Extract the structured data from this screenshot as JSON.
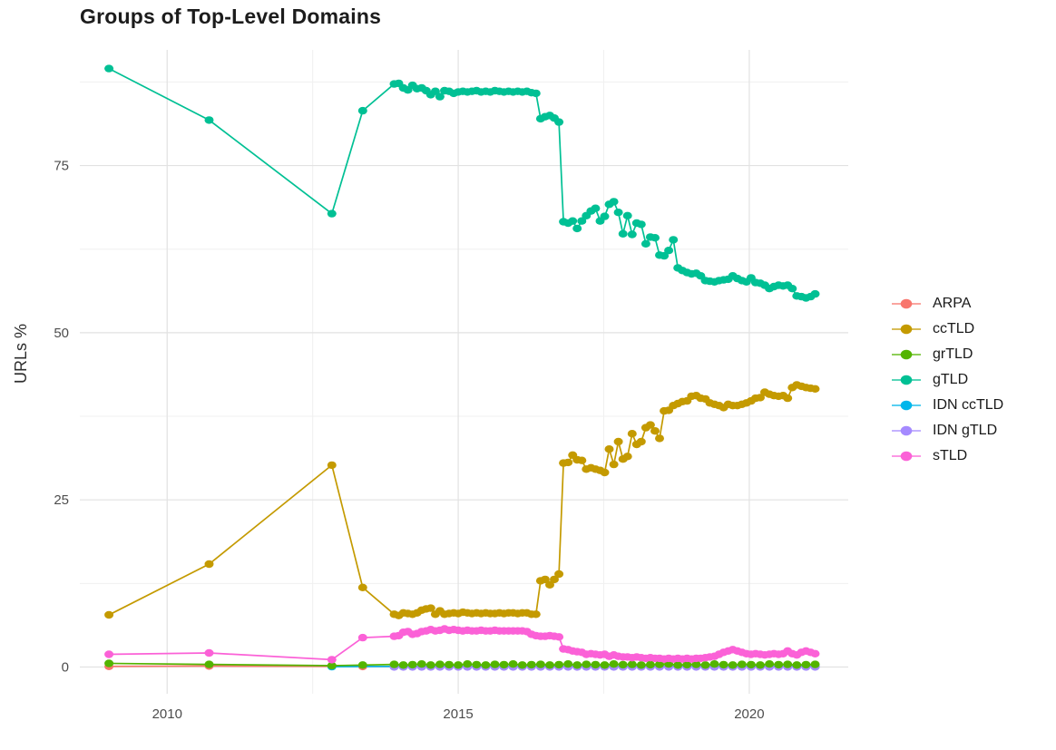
{
  "chart_data": {
    "type": "line",
    "title": "Groups of Top-Level Domains",
    "xlabel": "",
    "ylabel": "URLs %",
    "x_ticks": [
      2010,
      2015,
      2020
    ],
    "x_minor_ticks": [
      2012.5,
      2017.5
    ],
    "y_ticks": [
      0,
      25,
      50,
      75
    ],
    "y_minor_ticks": [
      12.5,
      37.5,
      62.5,
      87.5
    ],
    "xlim": [
      2008.5,
      2021.7
    ],
    "ylim": [
      -4,
      92.3
    ],
    "grid": "on",
    "legend_position": "right",
    "draw_order": [
      "ARPA",
      "IDN ccTLD",
      "IDN gTLD",
      "grTLD",
      "ccTLD",
      "gTLD",
      "sTLD"
    ],
    "series": [
      {
        "name": "ARPA",
        "color": "#F8766D",
        "sparse": [
          [
            2009.0,
            0.1
          ],
          [
            2010.72,
            0.15
          ],
          [
            2012.83,
            0.1
          ],
          [
            2013.36,
            0.08
          ]
        ],
        "dense": {
          "x_start": 2013.9,
          "x_step": 0.1572,
          "values": [
            0.08,
            0.08,
            0.08,
            0.08,
            0.08,
            0.08,
            0.08,
            0.08,
            0.08,
            0.08,
            0.08,
            0.08,
            0.08,
            0.08,
            0.08,
            0.08,
            0.08,
            0.08,
            0.08,
            0.08,
            0.08,
            0.08,
            0.08,
            0.08,
            0.08,
            0.08,
            0.08,
            0.08,
            0.08,
            0.08,
            0.08,
            0.08,
            0.08,
            0.08,
            0.08,
            0.08,
            0.08,
            0.08,
            0.08,
            0.08,
            0.08,
            0.08,
            0.08,
            0.08,
            0.08,
            0.08,
            0.08
          ]
        }
      },
      {
        "name": "ccTLD",
        "color": "#C49A00",
        "sparse": [
          [
            2009.0,
            7.8
          ],
          [
            2010.72,
            15.4
          ],
          [
            2012.83,
            30.2
          ],
          [
            2013.36,
            11.9
          ]
        ],
        "dense": {
          "x_start": 2013.9,
          "x_step": 0.0786,
          "values": [
            7.9,
            7.7,
            8.1,
            8.0,
            7.9,
            8.1,
            8.5,
            8.7,
            8.8,
            7.9,
            8.4,
            7.9,
            8.0,
            8.1,
            8.0,
            8.2,
            8.1,
            8.0,
            8.1,
            8.0,
            8.1,
            8.0,
            8.0,
            8.1,
            8.0,
            8.1,
            8.1,
            8.0,
            8.1,
            8.1,
            7.9,
            7.9,
            12.9,
            13.1,
            12.3,
            13.1,
            13.9,
            30.5,
            30.6,
            31.7,
            31.0,
            30.9,
            29.6,
            29.8,
            29.6,
            29.4,
            29.1,
            32.6,
            30.3,
            33.7,
            31.1,
            31.5,
            34.9,
            33.3,
            33.7,
            35.8,
            36.2,
            35.3,
            34.2,
            38.3,
            38.4,
            39.1,
            39.4,
            39.7,
            39.8,
            40.5,
            40.6,
            40.2,
            40.1,
            39.5,
            39.3,
            39.1,
            38.8,
            39.3,
            39.1,
            39.1,
            39.3,
            39.5,
            39.8,
            40.2,
            40.3,
            41.1,
            40.8,
            40.6,
            40.5,
            40.6,
            40.2,
            41.8,
            42.2,
            42.0,
            41.8,
            41.7,
            41.6
          ]
        }
      },
      {
        "name": "grTLD",
        "color": "#53B400",
        "sparse": [
          [
            2009.0,
            0.55
          ],
          [
            2010.72,
            0.4
          ],
          [
            2012.83,
            0.2
          ],
          [
            2013.36,
            0.3
          ]
        ],
        "dense": {
          "x_start": 2013.9,
          "x_step": 0.1572,
          "values": [
            0.4,
            0.3,
            0.35,
            0.45,
            0.3,
            0.4,
            0.35,
            0.3,
            0.45,
            0.35,
            0.3,
            0.4,
            0.35,
            0.45,
            0.3,
            0.35,
            0.4,
            0.3,
            0.35,
            0.45,
            0.3,
            0.4,
            0.35,
            0.3,
            0.45,
            0.35,
            0.4,
            0.3,
            0.35,
            0.4,
            0.45,
            0.3,
            0.35,
            0.4,
            0.3,
            0.45,
            0.35,
            0.3,
            0.4,
            0.35,
            0.3,
            0.45,
            0.35,
            0.4,
            0.3,
            0.35,
            0.4
          ]
        }
      },
      {
        "name": "gTLD",
        "color": "#00C094",
        "sparse": [
          [
            2009.0,
            89.5
          ],
          [
            2010.72,
            81.8
          ],
          [
            2012.83,
            67.8
          ],
          [
            2013.36,
            83.2
          ]
        ],
        "dense": {
          "x_start": 2013.9,
          "x_step": 0.0786,
          "values": [
            87.2,
            87.3,
            86.6,
            86.3,
            87.0,
            86.5,
            86.6,
            86.2,
            85.6,
            86.1,
            85.3,
            86.2,
            86.1,
            85.8,
            86.0,
            86.1,
            86.0,
            86.1,
            86.2,
            86.0,
            86.1,
            86.0,
            86.2,
            86.1,
            86.0,
            86.1,
            86.0,
            86.1,
            86.0,
            86.1,
            85.9,
            85.8,
            82.0,
            82.3,
            82.5,
            82.1,
            81.5,
            66.6,
            66.4,
            66.7,
            65.6,
            66.7,
            67.5,
            68.2,
            68.6,
            66.7,
            67.4,
            69.2,
            69.6,
            68.0,
            64.8,
            67.5,
            64.7,
            66.4,
            66.2,
            63.3,
            64.3,
            64.2,
            61.6,
            61.5,
            62.3,
            63.9,
            59.7,
            59.3,
            59.0,
            58.8,
            58.9,
            58.5,
            57.8,
            57.7,
            57.6,
            57.8,
            57.9,
            58.0,
            58.5,
            58.1,
            57.8,
            57.6,
            58.2,
            57.5,
            57.4,
            57.1,
            56.6,
            56.9,
            57.1,
            57.0,
            57.1,
            56.6,
            55.5,
            55.4,
            55.2,
            55.4,
            55.8
          ]
        }
      },
      {
        "name": "IDN ccTLD",
        "color": "#00B6EB",
        "sparse": [
          [
            2012.83,
            0.06
          ]
        ],
        "dense": {
          "x_start": 2013.9,
          "x_step": 0.1572,
          "values": [
            0.1,
            0.1,
            0.1,
            0.1,
            0.1,
            0.1,
            0.1,
            0.1,
            0.1,
            0.1,
            0.1,
            0.1,
            0.1,
            0.1,
            0.1,
            0.1,
            0.1,
            0.1,
            0.1,
            0.1,
            0.1,
            0.1,
            0.1,
            0.1,
            0.1,
            0.1,
            0.1,
            0.1,
            0.1,
            0.1,
            0.1,
            0.1,
            0.1,
            0.1,
            0.1,
            0.1,
            0.1,
            0.1,
            0.1,
            0.1,
            0.1,
            0.1,
            0.1,
            0.1,
            0.1,
            0.1,
            0.1
          ]
        }
      },
      {
        "name": "IDN gTLD",
        "color": "#A58AFF",
        "sparse": [],
        "dense": {
          "x_start": 2013.9,
          "x_step": 0.1572,
          "values": [
            0.02,
            0.02,
            0.02,
            0.02,
            0.02,
            0.02,
            0.02,
            0.02,
            0.02,
            0.02,
            0.02,
            0.02,
            0.02,
            0.02,
            0.02,
            0.02,
            0.02,
            0.02,
            0.02,
            0.02,
            0.02,
            0.02,
            0.02,
            0.02,
            0.02,
            0.02,
            0.02,
            0.02,
            0.02,
            0.02,
            0.02,
            0.02,
            0.02,
            0.02,
            0.02,
            0.02,
            0.02,
            0.02,
            0.02,
            0.02,
            0.02,
            0.02,
            0.02,
            0.02,
            0.02,
            0.02,
            0.02
          ]
        }
      },
      {
        "name": "sTLD",
        "color": "#FB61D7",
        "sparse": [
          [
            2009.0,
            1.9
          ],
          [
            2010.72,
            2.1
          ],
          [
            2012.83,
            1.1
          ],
          [
            2013.36,
            4.4
          ]
        ],
        "dense": {
          "x_start": 2013.9,
          "x_step": 0.0786,
          "values": [
            4.6,
            4.7,
            5.2,
            5.3,
            4.9,
            5.0,
            5.3,
            5.4,
            5.6,
            5.4,
            5.5,
            5.7,
            5.5,
            5.6,
            5.5,
            5.4,
            5.5,
            5.4,
            5.4,
            5.5,
            5.4,
            5.4,
            5.5,
            5.4,
            5.4,
            5.4,
            5.4,
            5.4,
            5.4,
            5.3,
            4.9,
            4.7,
            4.6,
            4.6,
            4.7,
            4.6,
            4.5,
            2.7,
            2.6,
            2.4,
            2.3,
            2.2,
            1.9,
            2.0,
            1.9,
            1.8,
            1.9,
            1.6,
            1.8,
            1.6,
            1.5,
            1.5,
            1.4,
            1.5,
            1.4,
            1.3,
            1.4,
            1.3,
            1.3,
            1.2,
            1.3,
            1.2,
            1.3,
            1.2,
            1.3,
            1.2,
            1.3,
            1.3,
            1.4,
            1.5,
            1.6,
            1.9,
            2.2,
            2.4,
            2.6,
            2.4,
            2.2,
            2.0,
            1.9,
            2.0,
            1.9,
            1.8,
            1.9,
            2.0,
            1.9,
            2.0,
            2.4,
            2.0,
            1.8,
            2.2,
            2.4,
            2.2,
            2.0
          ]
        }
      }
    ],
    "colors": {
      "grid_major": "#e2e2e2",
      "grid_minor": "#f0f0f0",
      "tick_label": "#4d4d4d",
      "title_text": "#1c1c1c"
    }
  }
}
